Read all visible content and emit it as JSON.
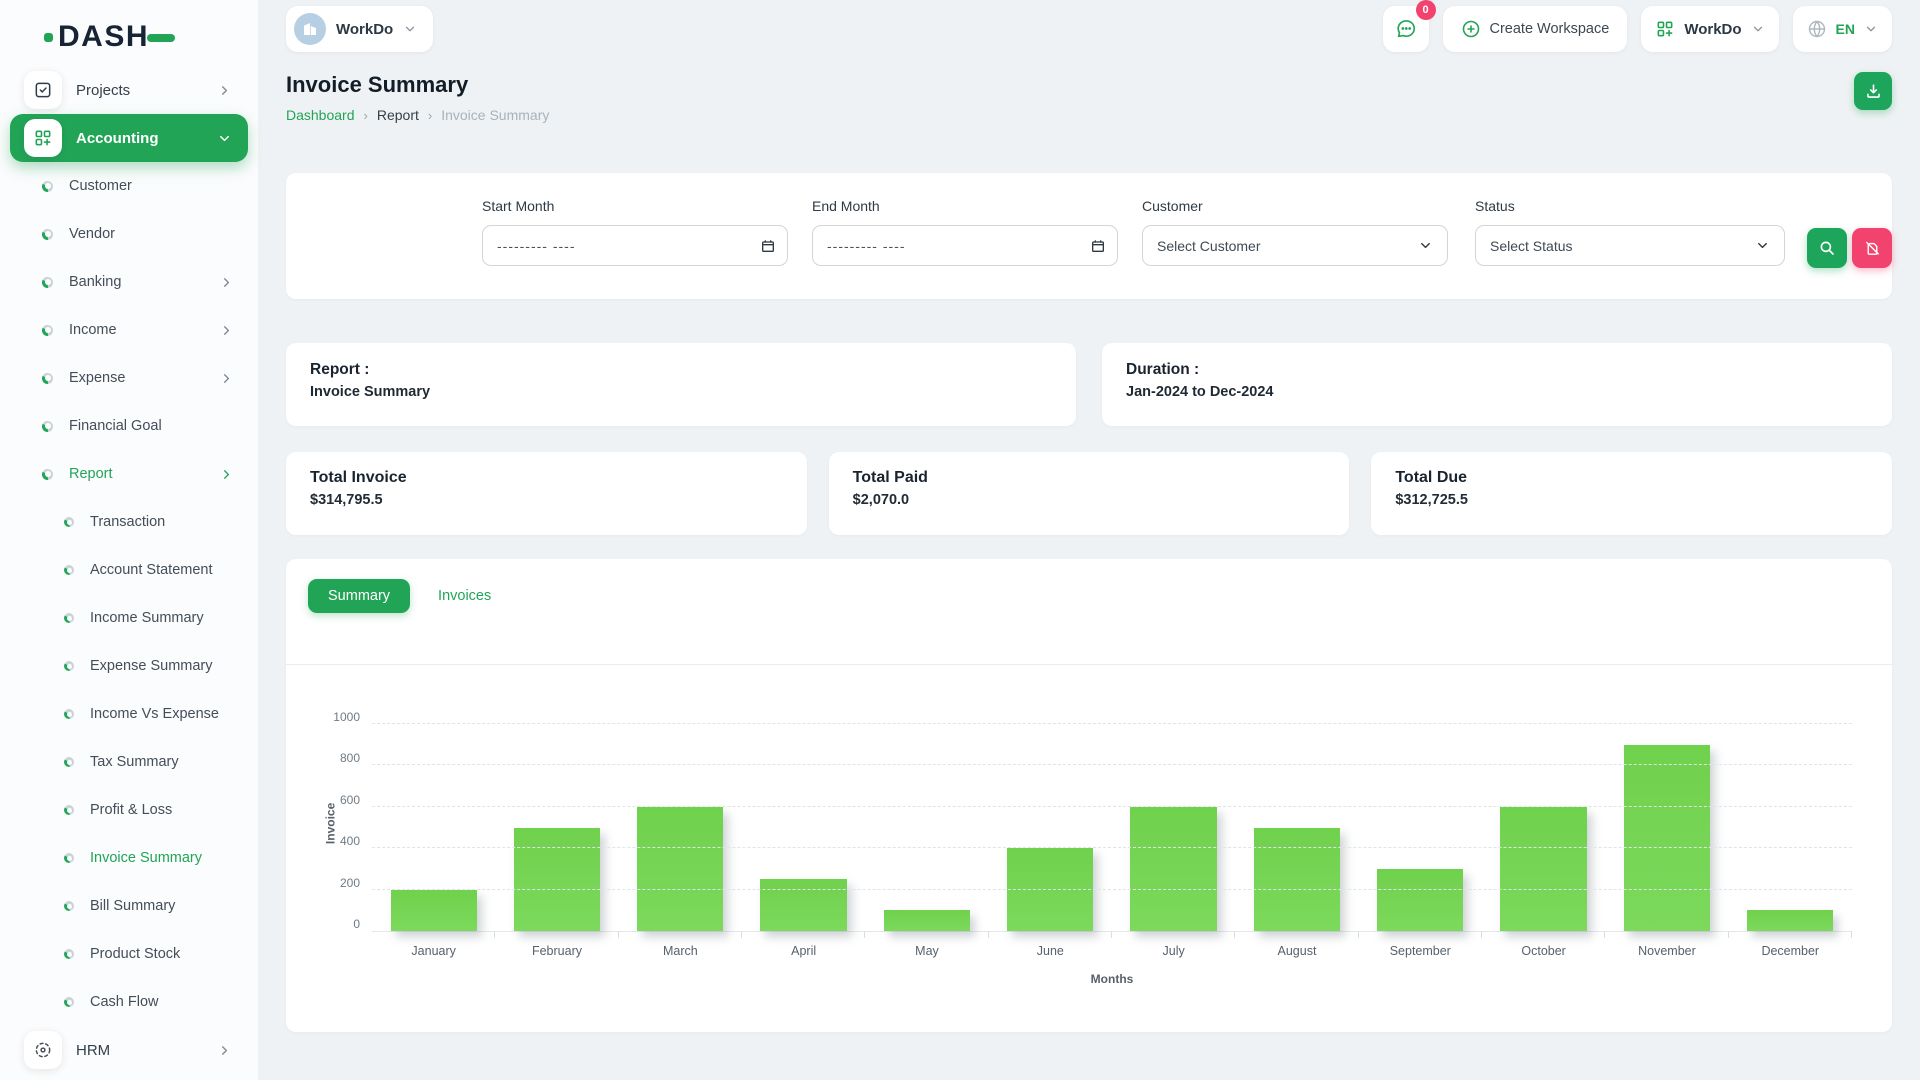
{
  "brand": {
    "logo_text": "DASH"
  },
  "header": {
    "workspace_name": "WorkDo",
    "messages_badge": "0",
    "create_workspace_label": "Create Workspace",
    "workdo_menu_label": "WorkDo",
    "language_code": "EN"
  },
  "sidebar": {
    "items": [
      {
        "label": "Projects",
        "kind": "section",
        "icon": "projects-checkbox-icon",
        "chevron": "right"
      },
      {
        "label": "Accounting",
        "kind": "section",
        "icon": "accounting-grid-plus-icon",
        "chevron": "down",
        "active": true
      },
      {
        "label": "Customer",
        "kind": "sub",
        "level": 1
      },
      {
        "label": "Vendor",
        "kind": "sub",
        "level": 1
      },
      {
        "label": "Banking",
        "kind": "sub",
        "level": 1,
        "chevron": "right"
      },
      {
        "label": "Income",
        "kind": "sub",
        "level": 1,
        "chevron": "right"
      },
      {
        "label": "Expense",
        "kind": "sub",
        "level": 1,
        "chevron": "right"
      },
      {
        "label": "Financial Goal",
        "kind": "sub",
        "level": 1
      },
      {
        "label": "Report",
        "kind": "sub",
        "level": 1,
        "chevron": "right",
        "active": true
      },
      {
        "label": "Transaction",
        "kind": "sub",
        "level": 2
      },
      {
        "label": "Account Statement",
        "kind": "sub",
        "level": 2
      },
      {
        "label": "Income Summary",
        "kind": "sub",
        "level": 2
      },
      {
        "label": "Expense Summary",
        "kind": "sub",
        "level": 2
      },
      {
        "label": "Income Vs Expense",
        "kind": "sub",
        "level": 2
      },
      {
        "label": "Tax Summary",
        "kind": "sub",
        "level": 2
      },
      {
        "label": "Profit & Loss",
        "kind": "sub",
        "level": 2
      },
      {
        "label": "Invoice Summary",
        "kind": "sub",
        "level": 2,
        "active": true
      },
      {
        "label": "Bill Summary",
        "kind": "sub",
        "level": 2
      },
      {
        "label": "Product Stock",
        "kind": "sub",
        "level": 2
      },
      {
        "label": "Cash Flow",
        "kind": "sub",
        "level": 2
      },
      {
        "label": "HRM",
        "kind": "section",
        "icon": "hrm-icon",
        "chevron": "right"
      }
    ]
  },
  "page": {
    "title": "Invoice Summary",
    "breadcrumb": [
      "Dashboard",
      "Report",
      "Invoice Summary"
    ]
  },
  "filters": {
    "start_month": {
      "label": "Start Month",
      "placeholder": "--------- ----"
    },
    "end_month": {
      "label": "End Month",
      "placeholder": "--------- ----"
    },
    "customer": {
      "label": "Customer",
      "value": "Select Customer"
    },
    "status": {
      "label": "Status",
      "value": "Select Status"
    }
  },
  "info_cards": {
    "report": {
      "label": "Report :",
      "value": "Invoice Summary"
    },
    "duration": {
      "label": "Duration :",
      "value": "Jan-2024 to Dec-2024"
    }
  },
  "stats": [
    {
      "label": "Total Invoice",
      "value": "$314,795.5"
    },
    {
      "label": "Total Paid",
      "value": "$2,070.0"
    },
    {
      "label": "Total Due",
      "value": "$312,725.5"
    }
  ],
  "tabs": [
    {
      "label": "Summary",
      "active": true
    },
    {
      "label": "Invoices",
      "active": false
    }
  ],
  "chart_data": {
    "type": "bar",
    "title": "",
    "categories": [
      "January",
      "February",
      "March",
      "April",
      "May",
      "June",
      "July",
      "August",
      "September",
      "October",
      "November",
      "December"
    ],
    "values": [
      200,
      500,
      600,
      250,
      100,
      400,
      600,
      500,
      300,
      600,
      900,
      100
    ],
    "xlabel": "Months",
    "ylabel": "Invoice",
    "ylim": [
      0,
      1000
    ],
    "yticks": [
      0,
      200,
      400,
      600,
      800,
      1000
    ],
    "grid": true,
    "legend": "none",
    "bar_color": "#74d551"
  },
  "colors": {
    "accent_green": "#22a457",
    "pink": "#f2426e",
    "bar_green": "#74d551",
    "navy": "#172435"
  }
}
